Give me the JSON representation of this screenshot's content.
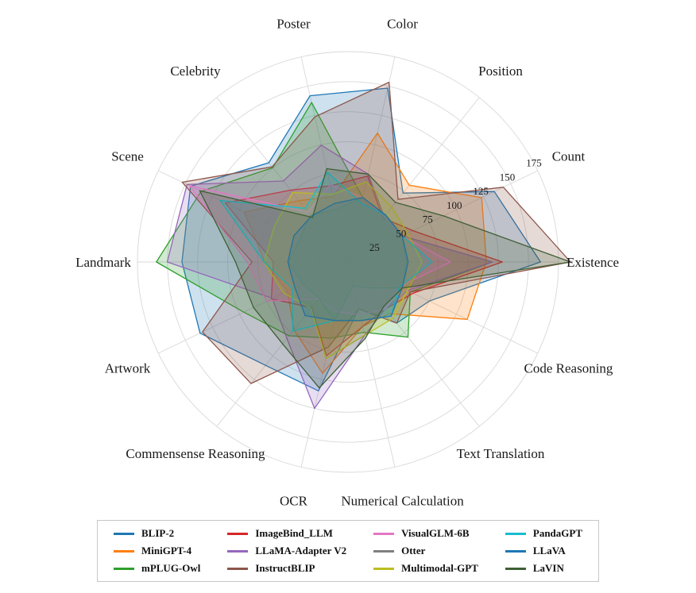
{
  "chart_data": {
    "type": "radar",
    "categories": [
      "Existence",
      "Count",
      "Position",
      "Color",
      "Poster",
      "Celebrity",
      "Scene",
      "Landmark",
      "Artwork",
      "Commensense Reasoning",
      "OCR",
      "Numerical Calculation",
      "Text Translation",
      "Code Reasoning"
    ],
    "radial_ticks": [
      25,
      50,
      75,
      100,
      125,
      150,
      175
    ],
    "radial_max": 175,
    "grid": true,
    "legend_position": "bottom",
    "series": [
      {
        "name": "BLIP-2",
        "color": "#1f77b4",
        "values": [
          160,
          135,
          73.33,
          148.33,
          141.84,
          105.59,
          145.25,
          138,
          136.5,
          110,
          110,
          40,
          65,
          75
        ]
      },
      {
        "name": "MiniGPT-4",
        "color": "#ff7f0e",
        "values": [
          115,
          123.33,
          81.67,
          110,
          55.78,
          65.29,
          95.75,
          69,
          55.75,
          72.14,
          95,
          55,
          55,
          110
        ]
      },
      {
        "name": "mPLUG-Owl",
        "color": "#2ca02c",
        "values": [
          120,
          50,
          50,
          55,
          136.05,
          100.29,
          135.5,
          159.25,
          96.25,
          78.57,
          65,
          60,
          80,
          57.5
        ]
      },
      {
        "name": "ImageBind_LLM",
        "color": "#d62728",
        "values": [
          128.33,
          60,
          46.67,
          73.33,
          64.97,
          76.47,
          113.25,
          62,
          70.75,
          48.57,
          80,
          55,
          50,
          60
        ]
      },
      {
        "name": "LLaMA-Adapter V2",
        "color": "#9467bd",
        "values": [
          120,
          50,
          48.33,
          75,
          99.66,
          86.18,
          148.5,
          150.25,
          69.75,
          81.43,
          125,
          62.5,
          50,
          55
        ]
      },
      {
        "name": "InstructBLIP",
        "color": "#8c564b",
        "values": [
          185,
          143.33,
          66.67,
          153.33,
          123.81,
          101.18,
          153,
          79.75,
          134.25,
          129.29,
          72.5,
          40,
          65,
          57.5
        ]
      },
      {
        "name": "VisualGLM-6B",
        "color": "#e377c2",
        "values": [
          85,
          50,
          48.33,
          55,
          65.99,
          53.24,
          146.25,
          83.75,
          75.25,
          39.29,
          42.5,
          45,
          50,
          47.5
        ]
      },
      {
        "name": "Otter",
        "color": "#7f7f7f",
        "values": [
          48.33,
          50,
          50,
          55,
          44.9,
          50,
          44.25,
          49.5,
          41.75,
          38.57,
          50,
          20,
          27.5,
          50
        ]
      },
      {
        "name": "Multimodal-GPT",
        "color": "#bcbd22",
        "values": [
          61.67,
          55,
          58.33,
          68.33,
          57.82,
          73.82,
          68,
          69.75,
          59.5,
          49.29,
          82.5,
          62.5,
          60,
          55
        ]
      },
      {
        "name": "PandaGPT",
        "color": "#17becf",
        "values": [
          70,
          50,
          50,
          50,
          76.53,
          57.06,
          118,
          69.75,
          51.25,
          73.57,
          50,
          50,
          57.5,
          47.5
        ]
      },
      {
        "name": "LLaVA",
        "color": "#1f77b4",
        "values": [
          50,
          50,
          50,
          55,
          50,
          48.82,
          50,
          50,
          49,
          57.14,
          50,
          50,
          57.5,
          50
        ]
      },
      {
        "name": "LaVIN",
        "color": "#3e5f35",
        "values": [
          185,
          88.33,
          63.33,
          75,
          79.59,
          47.35,
          136.75,
          93.5,
          87.25,
          87.14,
          107.5,
          65,
          47.5,
          50
        ]
      }
    ],
    "style": {
      "grid_color": "#d8d8d8",
      "fill_opacity": 0.22,
      "stroke_width": 1.3
    }
  }
}
